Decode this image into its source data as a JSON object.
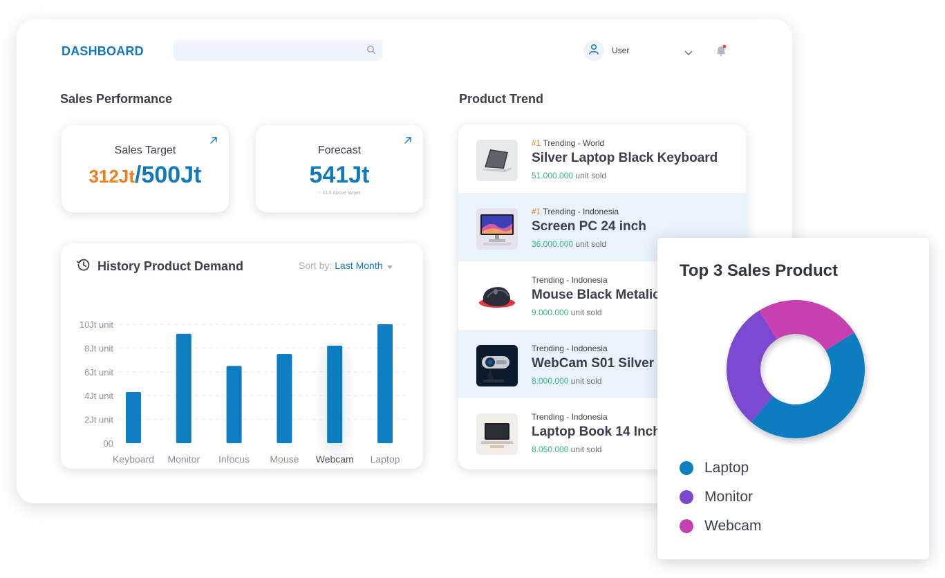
{
  "header": {
    "brand": "DASHBOARD",
    "search_placeholder": "",
    "user_name": "User"
  },
  "sales_performance": {
    "title": "Sales Performance",
    "sales_target": {
      "label": "Sales Target",
      "achieved": "312Jt",
      "target": "/500Jt"
    },
    "forecast": {
      "label": "Forecast",
      "value": "541Jt",
      "note": "41Jt Above target"
    }
  },
  "history": {
    "title": "History Product Demand",
    "sort_label": "Sort by:",
    "sort_value": "Last Month"
  },
  "chart_data": {
    "type": "bar",
    "categories": [
      "Keyboard",
      "Monitor",
      "Infocus",
      "Mouse",
      "Webcam",
      "Laptop"
    ],
    "values": [
      4.3,
      9.2,
      6.5,
      7.5,
      8.2,
      10.0
    ],
    "y_ticks": [
      "10Jt unit",
      "8Jt unit",
      "6Jt unit",
      "4Jt unit",
      "2Jt unit",
      "00"
    ],
    "y_tick_values": [
      10,
      8,
      6,
      4,
      2,
      0
    ],
    "ylim": [
      0,
      10
    ],
    "bar_color": "#0e7dc2",
    "grid": true
  },
  "product_trend": {
    "title": "Product Trend",
    "items": [
      {
        "rank": "#1",
        "scope": " Trending - World",
        "name": "Silver Laptop Black Keyboard",
        "qty": "51.000.000",
        "unit": " unit sold",
        "highlight": false,
        "thumb": "laptop-silver"
      },
      {
        "rank": "#1",
        "scope": " Trending - Indonesia",
        "name": "Screen PC 24 inch",
        "qty": "36.000.000",
        "unit": " unit sold",
        "highlight": true,
        "thumb": "monitor"
      },
      {
        "rank": "",
        "scope": "Trending - Indonesia",
        "name": "Mouse Black Metalic",
        "qty": "9.000.000",
        "unit": " unit sold",
        "highlight": false,
        "thumb": "mouse"
      },
      {
        "rank": "",
        "scope": "Trending - Indonesia",
        "name": "WebCam S01 Silver",
        "qty": "8.000.000",
        "unit": " unit sold",
        "highlight": true,
        "thumb": "webcam"
      },
      {
        "rank": "",
        "scope": "Trending - Indonesia",
        "name": "Laptop Book 14 Inch",
        "qty": "8.050.000",
        "unit": " unit sold",
        "highlight": false,
        "thumb": "laptop-book"
      }
    ]
  },
  "top_sales": {
    "title": "Top 3 Sales Product",
    "segments": [
      {
        "label": "Laptop",
        "share": 0.45,
        "color": "#0e7dc2"
      },
      {
        "label": "Monitor",
        "share": 0.3,
        "color": "#7a48cf"
      },
      {
        "label": "Webcam",
        "share": 0.25,
        "color": "#c63fb1"
      }
    ]
  },
  "colors": {
    "accent": "#1279bd",
    "orange": "#f07f1a",
    "green": "#35b97a",
    "highlight_row": "#e9f3fb"
  }
}
